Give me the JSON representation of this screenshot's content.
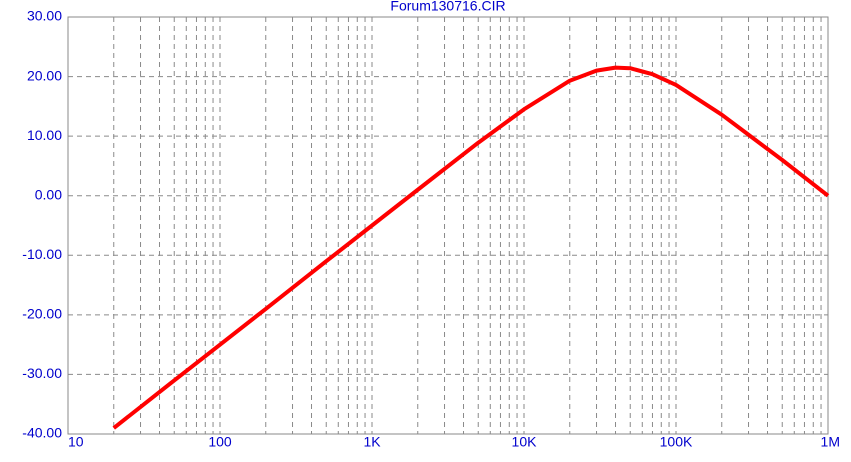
{
  "chart_data": {
    "type": "line",
    "title": "Forum130716.CIR",
    "x": [
      20,
      50,
      100,
      200,
      500,
      1000,
      2000,
      5000,
      10000,
      20000,
      30000,
      40000,
      50000,
      70000,
      100000,
      200000,
      500000,
      1000000
    ],
    "series": [
      {
        "color": "#ff0000",
        "values": [
          -39.0,
          -31.0,
          -25.0,
          -19.0,
          -11.0,
          -5.0,
          1.0,
          8.9,
          14.5,
          19.3,
          21.0,
          21.5,
          21.4,
          20.4,
          18.6,
          13.6,
          6.0,
          0.0
        ]
      }
    ],
    "xscale": "log",
    "xlim": [
      10,
      1000000
    ],
    "xticks": [
      10,
      100,
      {
        "value": 1000,
        "label": "1K"
      },
      {
        "value": 10000,
        "label": "10K"
      },
      {
        "value": 100000,
        "label": "100K"
      },
      {
        "value": 1000000,
        "label": "1M"
      }
    ],
    "ylim": [
      -40,
      30
    ],
    "yticks": [
      {
        "value": -40,
        "label": "-40.00"
      },
      {
        "value": -30,
        "label": "-30.00"
      },
      {
        "value": -20,
        "label": "-20.00"
      },
      {
        "value": -10,
        "label": "-10.00"
      },
      {
        "value": 0,
        "label": "0.00"
      },
      {
        "value": 10,
        "label": "10.00"
      },
      {
        "value": 20,
        "label": "20.00"
      },
      {
        "value": 30,
        "label": "30.00"
      }
    ],
    "grid": true,
    "minor_grid": true
  }
}
